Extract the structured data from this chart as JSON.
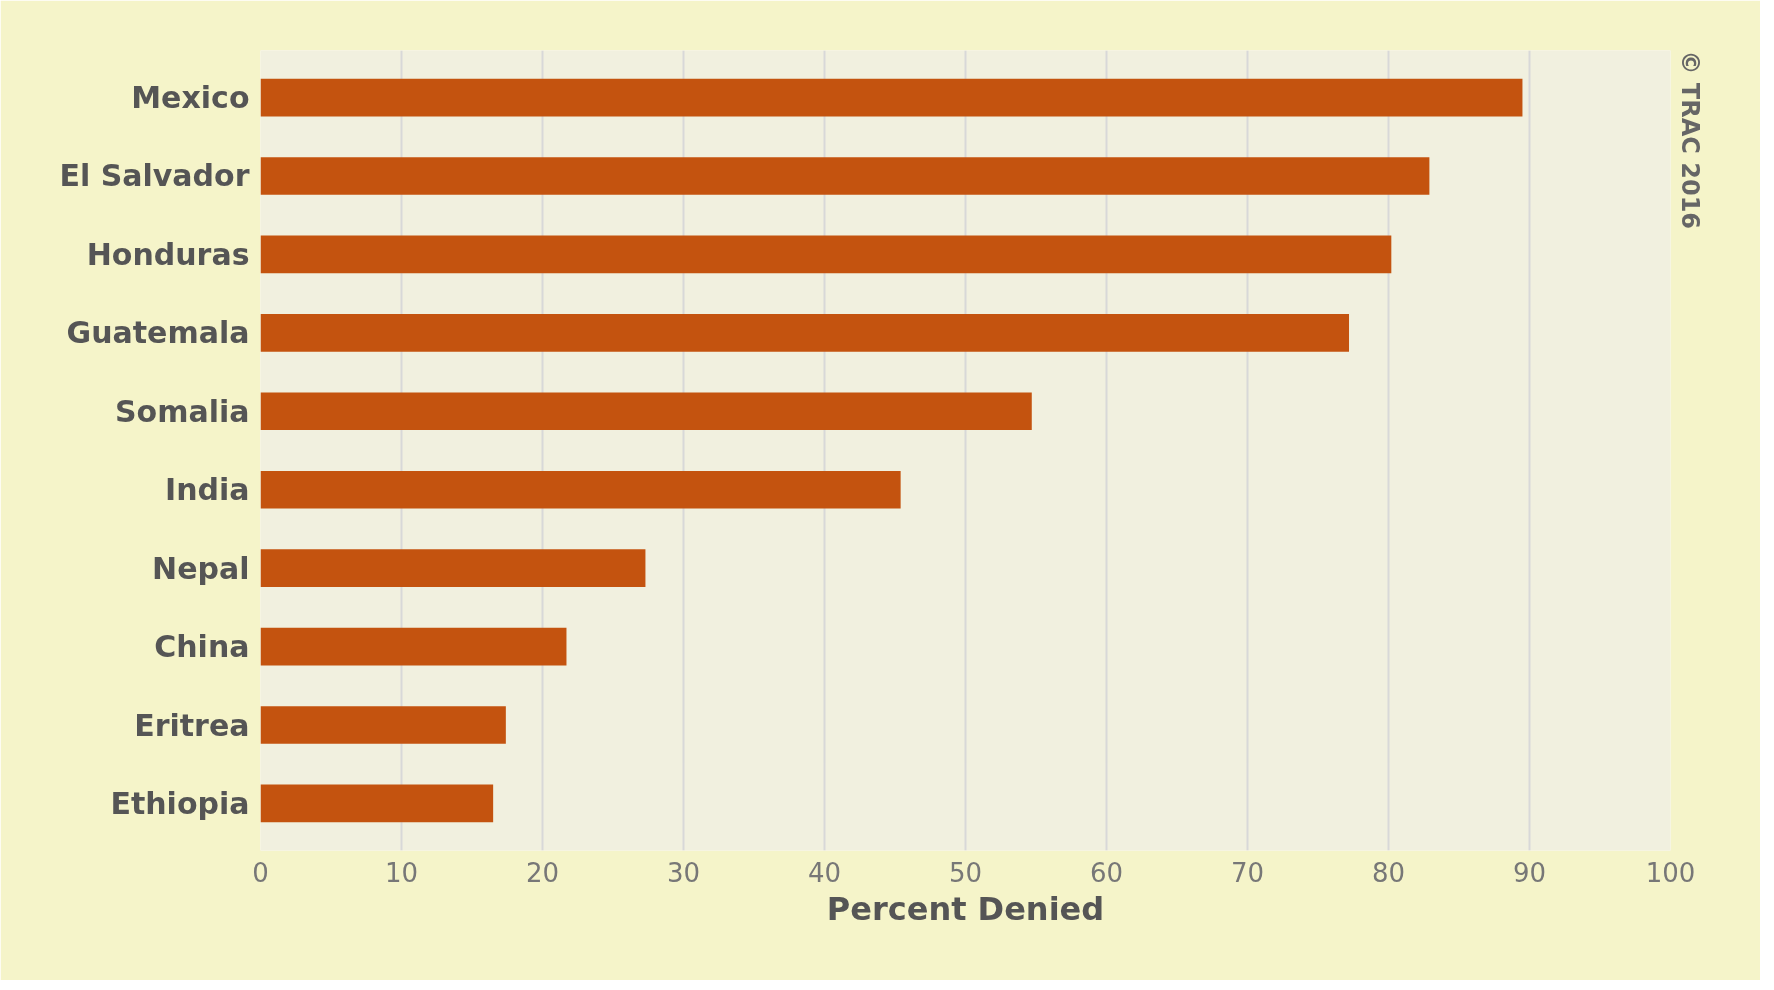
{
  "chart_data": {
    "type": "bar",
    "orientation": "horizontal",
    "xlabel": "Percent Denied",
    "categories": [
      "Mexico",
      "El Salvador",
      "Honduras",
      "Guatemala",
      "Somalia",
      "India",
      "Nepal",
      "China",
      "Eritrea",
      "Ethiopia"
    ],
    "values": [
      89.5,
      82.9,
      80.2,
      77.2,
      54.7,
      45.4,
      27.3,
      21.7,
      17.4,
      16.5
    ],
    "color": "#c4530f",
    "xlim": [
      0,
      100
    ],
    "xticks": [
      0,
      10,
      20,
      30,
      40,
      50,
      60,
      70,
      80,
      90,
      100
    ],
    "grid": "x",
    "annotations": [
      "© TRAC 2016"
    ]
  }
}
